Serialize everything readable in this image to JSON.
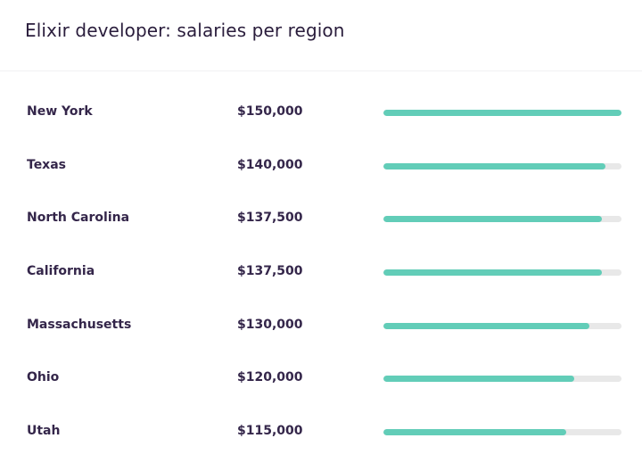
{
  "chart_data": {
    "type": "bar",
    "orientation": "horizontal",
    "title": "Elixir developer: salaries per region",
    "categories": [
      "New York",
      "Texas",
      "North Carolina",
      "California",
      "Massachusetts",
      "Ohio",
      "Utah"
    ],
    "value_labels": [
      "$150,000",
      "$140,000",
      "$137,500",
      "$137,500",
      "$130,000",
      "$120,000",
      "$115,000"
    ],
    "values": [
      150000,
      140000,
      137500,
      137500,
      130000,
      120000,
      115000
    ],
    "xlim": [
      0,
      150000
    ],
    "grid": false,
    "colors": {
      "bar": "#62cdb8",
      "track": "#e8e8e8",
      "text": "#34264a"
    }
  }
}
